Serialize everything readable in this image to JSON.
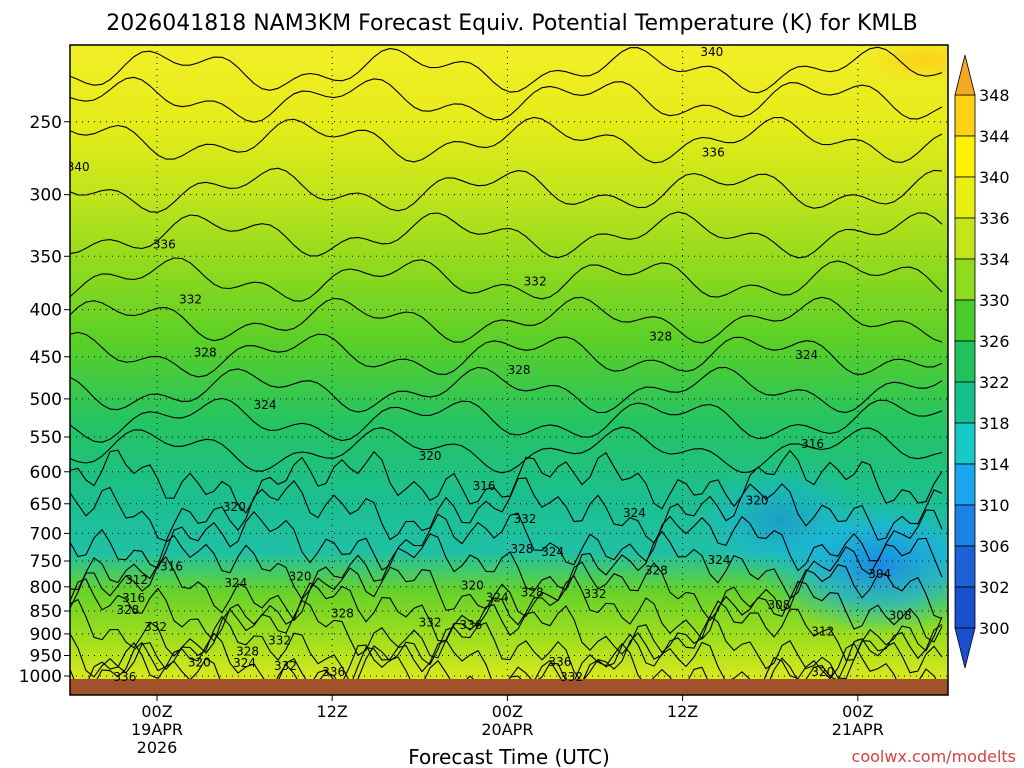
{
  "chart_data": {
    "type": "heatmap",
    "title": "2026041818 NAM3KM Forecast Equiv. Potential Temperature (K) for KMLB",
    "xlabel": "Forecast Time (UTC)",
    "ylabel": "",
    "credit": "coolwx.com/modelts",
    "x_ticks": [
      {
        "hour": 0,
        "lines": [
          "00Z",
          "19APR",
          "2026"
        ]
      },
      {
        "hour": 12,
        "lines": [
          "12Z"
        ]
      },
      {
        "hour": 24,
        "lines": [
          "00Z",
          "20APR"
        ]
      },
      {
        "hour": 36,
        "lines": [
          "12Z"
        ]
      },
      {
        "hour": 48,
        "lines": [
          "00Z",
          "21APR"
        ]
      }
    ],
    "xlim_hours": [
      -6,
      54
    ],
    "y_scale": "log",
    "ylim_hPa": [
      1020,
      200
    ],
    "y_ticks": [
      250,
      300,
      350,
      400,
      450,
      500,
      550,
      600,
      650,
      700,
      750,
      800,
      850,
      900,
      950,
      1000
    ],
    "grid": true,
    "colorbar": {
      "labels": [
        348,
        344,
        340,
        336,
        334,
        330,
        326,
        322,
        318,
        314,
        310,
        306,
        302,
        300
      ],
      "colors": [
        "#f5a623",
        "#fcd116",
        "#fff200",
        "#e8f013",
        "#c2e61b",
        "#8edc1d",
        "#47cc2a",
        "#22c25a",
        "#16c08e",
        "#18c9c9",
        "#1aa6ee",
        "#1b82e6",
        "#1c62d6",
        "#1a4fd0"
      ]
    },
    "contour_labels": [
      {
        "value": "340",
        "t": 38.0,
        "p": 210
      },
      {
        "value": "340",
        "t": -5.4,
        "p": 280
      },
      {
        "value": "336",
        "t": 38.1,
        "p": 270
      },
      {
        "value": "336",
        "t": 0.5,
        "p": 340
      },
      {
        "value": "332",
        "t": 2.3,
        "p": 390
      },
      {
        "value": "332",
        "t": 25.9,
        "p": 373
      },
      {
        "value": "328",
        "t": 34.5,
        "p": 428
      },
      {
        "value": "328",
        "t": 3.3,
        "p": 445
      },
      {
        "value": "328",
        "t": 24.8,
        "p": 465
      },
      {
        "value": "324",
        "t": 44.5,
        "p": 448
      },
      {
        "value": "324",
        "t": 7.4,
        "p": 508
      },
      {
        "value": "320",
        "t": 18.7,
        "p": 577
      },
      {
        "value": "316",
        "t": 22.4,
        "p": 622
      },
      {
        "value": "316",
        "t": 44.9,
        "p": 560
      },
      {
        "value": "320",
        "t": 5.3,
        "p": 655
      },
      {
        "value": "320",
        "t": 41.1,
        "p": 645
      },
      {
        "value": "324",
        "t": 32.7,
        "p": 665
      },
      {
        "value": "332",
        "t": 25.2,
        "p": 675
      },
      {
        "value": "328",
        "t": 25.0,
        "p": 728
      },
      {
        "value": "324",
        "t": 27.1,
        "p": 733
      },
      {
        "value": "324",
        "t": 38.5,
        "p": 748
      },
      {
        "value": "316",
        "t": 1.0,
        "p": 760
      },
      {
        "value": "312",
        "t": -1.4,
        "p": 787
      },
      {
        "value": "324",
        "t": 5.4,
        "p": 792
      },
      {
        "value": "320",
        "t": 9.8,
        "p": 780
      },
      {
        "value": "320",
        "t": 21.6,
        "p": 797
      },
      {
        "value": "328",
        "t": 34.2,
        "p": 768
      },
      {
        "value": "304",
        "t": 49.5,
        "p": 775
      },
      {
        "value": "316",
        "t": -1.6,
        "p": 823
      },
      {
        "value": "324",
        "t": 23.3,
        "p": 822
      },
      {
        "value": "328",
        "t": 25.7,
        "p": 812
      },
      {
        "value": "332",
        "t": 30.0,
        "p": 815
      },
      {
        "value": "308",
        "t": 42.6,
        "p": 837
      },
      {
        "value": "328",
        "t": -2.0,
        "p": 848
      },
      {
        "value": "328",
        "t": 12.7,
        "p": 855
      },
      {
        "value": "332",
        "t": 18.7,
        "p": 875
      },
      {
        "value": "336",
        "t": 21.5,
        "p": 880
      },
      {
        "value": "308",
        "t": 50.9,
        "p": 860
      },
      {
        "value": "332",
        "t": -0.1,
        "p": 885
      },
      {
        "value": "332",
        "t": 8.4,
        "p": 915
      },
      {
        "value": "312",
        "t": 45.6,
        "p": 895
      },
      {
        "value": "328",
        "t": 6.2,
        "p": 940
      },
      {
        "value": "320",
        "t": 2.9,
        "p": 967
      },
      {
        "value": "324",
        "t": 6.0,
        "p": 968
      },
      {
        "value": "332",
        "t": 8.8,
        "p": 975
      },
      {
        "value": "336",
        "t": 12.1,
        "p": 990
      },
      {
        "value": "336",
        "t": 27.6,
        "p": 965
      },
      {
        "value": "320",
        "t": 45.6,
        "p": 990
      },
      {
        "value": "336",
        "t": -2.2,
        "p": 1003
      },
      {
        "value": "332",
        "t": 28.4,
        "p": 1003
      }
    ]
  }
}
